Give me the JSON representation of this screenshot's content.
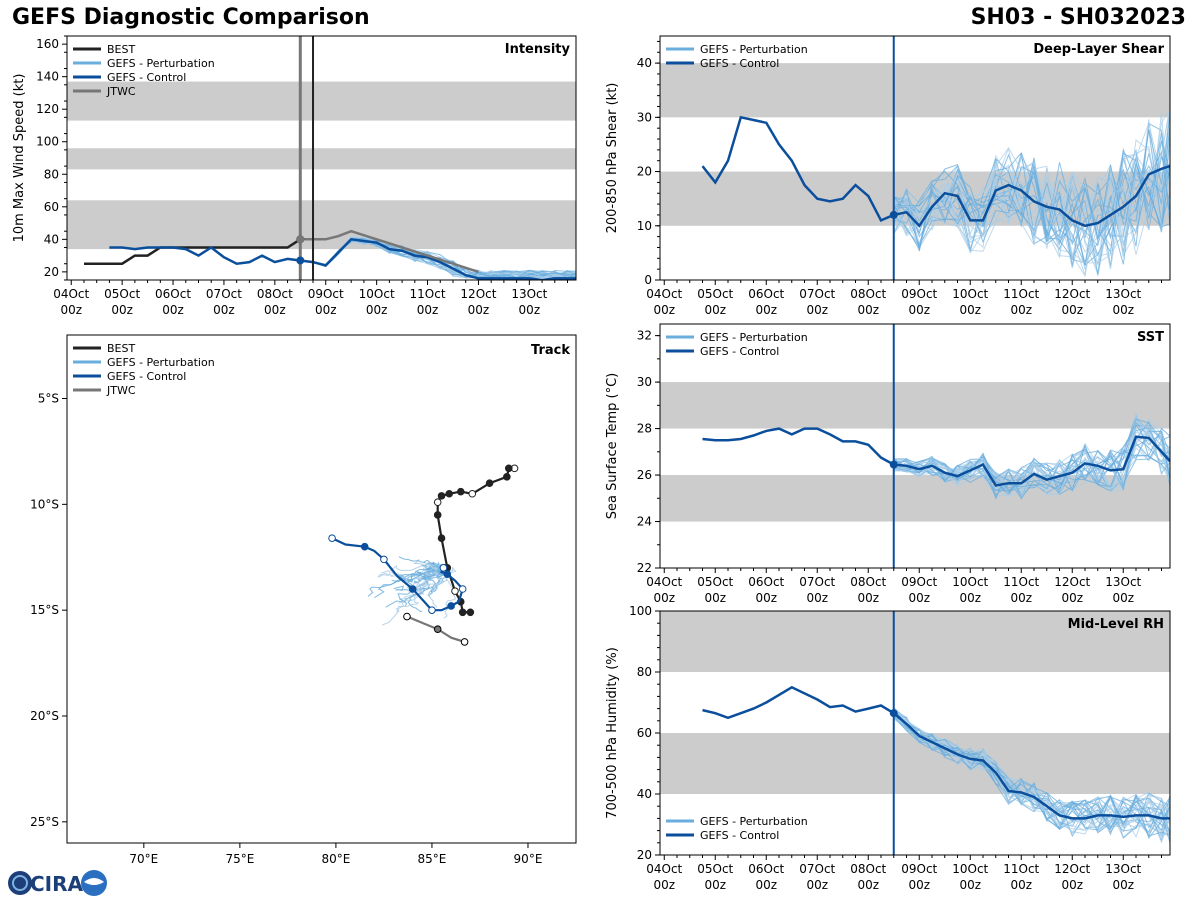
{
  "header": {
    "title": "GEFS Diagnostic Comparison",
    "storm_id": "SH03 - SH032023"
  },
  "logo": {
    "name": "CIRA logo",
    "text": "CIRA"
  },
  "time_axis": {
    "tick_labels": [
      "04Oct\n00z",
      "05Oct\n00z",
      "06Oct\n00z",
      "07Oct\n00z",
      "08Oct\n00z",
      "09Oct\n00z",
      "10Oct\n00z",
      "11Oct\n00z",
      "12Oct\n00z",
      "13Oct\n00z"
    ],
    "range_hours": [
      -2,
      238
    ],
    "init_hour": 108
  },
  "colors": {
    "best": "#222222",
    "perturbation": "#6aaede",
    "perturbation_light": "#aacde8",
    "control": "#0b4f9c",
    "jtwc": "#777777",
    "band": "#cccccc"
  },
  "chart_data": [
    {
      "id": "intensity",
      "type": "line",
      "title": "Intensity",
      "ylabel": "10m Max Wind Speed (kt)",
      "ylim": [
        15,
        165
      ],
      "yticks": [
        20,
        40,
        60,
        80,
        100,
        120,
        140,
        160
      ],
      "bands": [
        [
          34,
          64
        ],
        [
          83,
          96
        ],
        [
          113,
          137
        ]
      ],
      "vlines_hours": [
        108,
        114
      ],
      "legend": [
        "BEST",
        "GEFS - Perturbation",
        "GEFS - Control",
        "JTWC"
      ],
      "series": [
        {
          "name": "BEST",
          "x": [
            6,
            12,
            18,
            24,
            30,
            36,
            42,
            48,
            54,
            60,
            66,
            72,
            78,
            84,
            90,
            96,
            102,
            108,
            114
          ],
          "y": [
            25,
            25,
            25,
            25,
            30,
            30,
            35,
            35,
            35,
            35,
            35,
            35,
            35,
            35,
            35,
            35,
            35,
            40,
            40
          ]
        },
        {
          "name": "GEFS - Control",
          "x": [
            18,
            24,
            30,
            36,
            42,
            48,
            54,
            60,
            66,
            72,
            78,
            84,
            90,
            96,
            102,
            108,
            114,
            120,
            126,
            132,
            138,
            144,
            150,
            156,
            162,
            168,
            174,
            180,
            186,
            192,
            198,
            204,
            210,
            216,
            222,
            228,
            234,
            238
          ],
          "y": [
            35,
            35,
            34,
            35,
            35,
            35,
            34,
            30,
            35,
            29,
            25,
            26,
            30,
            26,
            28,
            27,
            26,
            24,
            32,
            40,
            39,
            38,
            34,
            33,
            30,
            29,
            26,
            22,
            18,
            16,
            16,
            16,
            16,
            16,
            15,
            16,
            16,
            16
          ]
        },
        {
          "name": "JTWC",
          "x": [
            108,
            114,
            120,
            126,
            132,
            144,
            156,
            168,
            180,
            192
          ],
          "y": [
            40,
            40,
            40,
            42,
            45,
            40,
            35,
            30,
            25,
            20
          ]
        }
      ]
    },
    {
      "id": "shear",
      "type": "line",
      "title": "Deep-Layer Shear",
      "ylabel": "200-850 hPa Shear (kt)",
      "ylim": [
        0,
        45
      ],
      "yticks": [
        0,
        10,
        20,
        30,
        40
      ],
      "bands": [
        [
          10,
          20
        ],
        [
          30,
          40
        ]
      ],
      "vlines_hours": [
        108
      ],
      "legend": [
        "GEFS - Perturbation",
        "GEFS - Control"
      ],
      "series": [
        {
          "name": "GEFS - Control",
          "x": [
            18,
            24,
            30,
            36,
            42,
            48,
            54,
            60,
            66,
            72,
            78,
            84,
            90,
            96,
            102,
            108,
            114,
            120,
            126,
            132,
            138,
            144,
            150,
            156,
            162,
            168,
            174,
            180,
            186,
            192,
            198,
            204,
            210,
            216,
            222,
            228,
            234,
            238
          ],
          "y": [
            21,
            18,
            22,
            30,
            29.5,
            29,
            25,
            22,
            17.5,
            15,
            14.5,
            15,
            17.5,
            15.5,
            11,
            12,
            12.5,
            10,
            13.5,
            16,
            15.5,
            11,
            11,
            16.5,
            17.5,
            16.5,
            14.5,
            13.5,
            13,
            11,
            10,
            10.5,
            12,
            13.5,
            15.5,
            19.5,
            20.5,
            21
          ]
        }
      ]
    },
    {
      "id": "sst",
      "type": "line",
      "title": "SST",
      "ylabel": "Sea Surface Temp (°C)",
      "ylim": [
        22,
        32.5
      ],
      "yticks": [
        22,
        24,
        26,
        28,
        30,
        32
      ],
      "bands": [
        [
          24,
          26
        ],
        [
          28,
          30
        ]
      ],
      "vlines_hours": [
        108
      ],
      "legend": [
        "GEFS - Perturbation",
        "GEFS - Control"
      ],
      "series": [
        {
          "name": "GEFS - Control",
          "x": [
            18,
            24,
            30,
            36,
            42,
            48,
            54,
            60,
            66,
            72,
            78,
            84,
            90,
            96,
            102,
            108,
            114,
            120,
            126,
            132,
            138,
            144,
            150,
            156,
            162,
            168,
            174,
            180,
            186,
            192,
            198,
            204,
            210,
            216,
            222,
            228,
            234,
            238
          ],
          "y": [
            27.55,
            27.5,
            27.5,
            27.55,
            27.7,
            27.9,
            28.0,
            27.75,
            28.0,
            28.0,
            27.75,
            27.45,
            27.45,
            27.3,
            26.75,
            26.45,
            26.4,
            26.25,
            26.4,
            26.1,
            25.95,
            26.2,
            26.45,
            25.55,
            25.65,
            25.65,
            26.05,
            25.8,
            25.95,
            26.1,
            26.5,
            26.4,
            26.2,
            26.25,
            27.65,
            27.6,
            27.0,
            26.6
          ]
        }
      ]
    },
    {
      "id": "rh",
      "type": "line",
      "title": "Mid-Level RH",
      "ylabel": "700-500 hPa Humidity (%)",
      "ylim": [
        20,
        100
      ],
      "yticks": [
        20,
        40,
        60,
        80,
        100
      ],
      "bands": [
        [
          40,
          60
        ],
        [
          80,
          100
        ]
      ],
      "vlines_hours": [
        108
      ],
      "legend": [
        "GEFS - Perturbation",
        "GEFS - Control"
      ],
      "series": [
        {
          "name": "GEFS - Control",
          "x": [
            18,
            24,
            30,
            36,
            42,
            48,
            54,
            60,
            66,
            72,
            78,
            84,
            90,
            96,
            102,
            108,
            114,
            120,
            126,
            132,
            138,
            144,
            150,
            156,
            162,
            168,
            174,
            180,
            186,
            192,
            198,
            204,
            210,
            216,
            222,
            228,
            234,
            238
          ],
          "y": [
            67.5,
            66.5,
            65,
            66.5,
            68,
            70,
            72.5,
            75,
            73,
            71,
            68.5,
            69,
            67,
            68,
            69,
            66.5,
            63,
            59,
            57,
            55,
            53,
            51.5,
            51,
            47,
            41,
            40.5,
            39,
            36,
            33,
            32,
            32,
            33,
            33,
            32.5,
            33,
            33,
            32,
            32
          ]
        }
      ]
    },
    {
      "id": "track",
      "type": "scatter",
      "title": "Track",
      "xlim": [
        66,
        92.5
      ],
      "ylim": [
        -26,
        -2
      ],
      "xticks": [
        70,
        75,
        80,
        85,
        90
      ],
      "yticks": [
        -5,
        -10,
        -15,
        -20,
        -25
      ],
      "xtick_labels": [
        "70°E",
        "75°E",
        "80°E",
        "85°E",
        "90°E"
      ],
      "ytick_labels": [
        "5°S",
        "10°S",
        "15°S",
        "20°S",
        "25°S"
      ],
      "legend": [
        "BEST",
        "GEFS - Perturbation",
        "GEFS - Control",
        "JTWC"
      ],
      "series": [
        {
          "name": "BEST",
          "lon": [
            89.3,
            89.0,
            88.9,
            88.0,
            87.1,
            86.5,
            85.9,
            85.5,
            85.3,
            85.3,
            85.5,
            85.8,
            86.2,
            86.5,
            86.6,
            87.0
          ],
          "lat": [
            -8.3,
            -8.3,
            -8.7,
            -9.0,
            -9.5,
            -9.4,
            -9.5,
            -9.6,
            -9.9,
            -10.5,
            -11.6,
            -13.0,
            -14.1,
            -14.6,
            -15.1,
            -15.1
          ]
        },
        {
          "name": "GEFS - Control",
          "lon": [
            79.8,
            80.5,
            81.5,
            82.0,
            82.5,
            83.2,
            84.0,
            84.6,
            85.0,
            85.5,
            86.0,
            86.4,
            86.6,
            86.2,
            85.8,
            85.5,
            85.6
          ],
          "lat": [
            -11.6,
            -11.9,
            -12.0,
            -12.2,
            -12.6,
            -13.4,
            -14.0,
            -14.6,
            -15.0,
            -15.0,
            -14.8,
            -14.6,
            -14.0,
            -13.6,
            -13.3,
            -13.2,
            -13.0
          ]
        },
        {
          "name": "JTWC",
          "lon": [
            83.7,
            84.5,
            85.3,
            86.0,
            86.7
          ],
          "lat": [
            -15.3,
            -15.6,
            -15.9,
            -16.3,
            -16.5
          ]
        }
      ]
    }
  ]
}
